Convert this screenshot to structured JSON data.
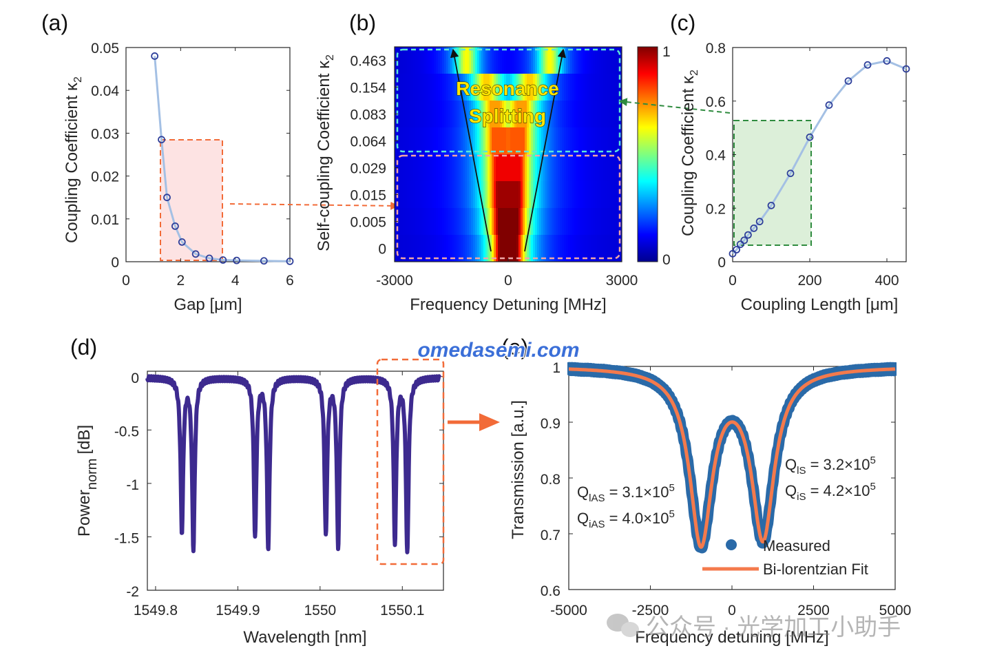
{
  "panels": {
    "a": "(a)",
    "b": "(b)",
    "c": "(c)",
    "d": "(d)",
    "e": "(e)"
  },
  "watermark": {
    "url": "omedasemi.com",
    "wechat": "公众号 · 光学加工小助手"
  },
  "colors": {
    "line_blue": "#a4c0e4",
    "marker_blue": "#2e3f9a",
    "orange": "#f26b38",
    "green": "#2e8b3e",
    "purple": "#3d2a8f",
    "meas_blue": "#2a6aa8",
    "fit_orange": "#f47a4c",
    "cyan_box": "#5ee6d6",
    "pink_box": "#f0a6a6"
  },
  "chart_data": [
    {
      "id": "a",
      "type": "line",
      "xlabel": "Gap [μm]",
      "ylabel": "Coupling Coefficient κ",
      "ylabel_sub": "2",
      "xlim": [
        0,
        6
      ],
      "ylim": [
        0,
        0.05
      ],
      "xticks": [
        "0",
        "2",
        "4",
        "6"
      ],
      "yticks": [
        "0",
        "0.01",
        "0.02",
        "0.03",
        "0.04",
        "0.05"
      ],
      "x": [
        1.05,
        1.3,
        1.5,
        1.8,
        2.05,
        2.55,
        3.05,
        3.55,
        4.05,
        5.05,
        6.0
      ],
      "y": [
        0.048,
        0.0285,
        0.015,
        0.0083,
        0.0046,
        0.0018,
        0.0008,
        0.0004,
        0.0003,
        0.0002,
        0.0001
      ],
      "grid": false
    },
    {
      "id": "b",
      "type": "heatmap",
      "xlabel": "Frequency Detuning [MHz]",
      "ylabel": "Self-coupling Coefficient κ",
      "ylabel_sub": "2",
      "xticks": [
        "-3000",
        "0",
        "3000"
      ],
      "xlim": [
        -3000,
        3000
      ],
      "rows": [
        "0.463",
        "0.154",
        "0.083",
        "0.064",
        "0.029",
        "0.015",
        "0.005",
        "0"
      ],
      "splitting_MHz": [
        2200,
        1150,
        720,
        540,
        330,
        240,
        160,
        70
      ],
      "widths_MHz": [
        300,
        380,
        400,
        420,
        400,
        390,
        360,
        330
      ],
      "peaks": [
        0.55,
        0.6,
        0.65,
        0.72,
        0.82,
        0.9,
        0.97,
        1.0
      ],
      "colorbar": {
        "max": "1",
        "min": "0"
      },
      "annotation": [
        "Resonance",
        "Splitting"
      ]
    },
    {
      "id": "c",
      "type": "line",
      "xlabel": "Coupling Length [μm]",
      "ylabel": "Coupling Coefficient κ",
      "ylabel_sub": "2",
      "xlim": [
        0,
        450
      ],
      "ylim": [
        0,
        0.8
      ],
      "xticks": [
        "0",
        "200",
        "400"
      ],
      "yticks": [
        "0",
        "0.2",
        "0.4",
        "0.6",
        "0.8"
      ],
      "x": [
        0,
        10,
        20,
        30,
        40,
        55,
        70,
        100,
        150,
        200,
        250,
        300,
        350,
        400,
        450
      ],
      "y": [
        0.03,
        0.045,
        0.065,
        0.08,
        0.1,
        0.125,
        0.15,
        0.21,
        0.33,
        0.465,
        0.585,
        0.675,
        0.735,
        0.75,
        0.72
      ],
      "grid": false
    },
    {
      "id": "d",
      "type": "line",
      "xlabel": "Wavelength [nm]",
      "ylabel": "Power",
      "ylabel_sub": "norm",
      "ylabel_unit": "[dB]",
      "xlim": [
        1549.79,
        1550.15
      ],
      "ylim": [
        -2,
        0.05
      ],
      "xticks": [
        "1549.8",
        "1549.9",
        "1550",
        "1550.1"
      ],
      "yticks": [
        "0",
        "-0.5",
        "-1",
        "-1.5",
        "-2"
      ],
      "dips": [
        {
          "x": 1549.832,
          "depth": 1.42,
          "w": 0.0019
        },
        {
          "x": 1549.846,
          "depth": 1.58,
          "w": 0.0019
        },
        {
          "x": 1549.921,
          "depth": 1.47,
          "w": 0.0019
        },
        {
          "x": 1549.937,
          "depth": 1.58,
          "w": 0.0019
        },
        {
          "x": 1550.007,
          "depth": 1.46,
          "w": 0.0019
        },
        {
          "x": 1550.022,
          "depth": 1.56,
          "w": 0.0019
        },
        {
          "x": 1550.091,
          "depth": 1.52,
          "w": 0.0019
        },
        {
          "x": 1550.106,
          "depth": 1.63,
          "w": 0.0019
        }
      ]
    },
    {
      "id": "e",
      "type": "line",
      "xlabel": "Frequency detuning [MHz]",
      "ylabel": "Transmission [a.u.]",
      "xlim": [
        -5000,
        5000
      ],
      "ylim": [
        0.6,
        1.0
      ],
      "xticks": [
        "-5000",
        "-2500",
        "0",
        "2500",
        "5000"
      ],
      "yticks": [
        "0.6",
        "0.7",
        "0.8",
        "0.9",
        "1"
      ],
      "series": [
        {
          "name": "Measured",
          "type": "scatter"
        },
        {
          "name": "Bi-lorentzian Fit",
          "type": "line"
        }
      ],
      "dips": [
        {
          "x": -950,
          "depth": 0.31,
          "hw": 420
        },
        {
          "x": 950,
          "depth": 0.3,
          "hw": 420
        }
      ],
      "q_labels": {
        "q_lAS": {
          "q": "Q",
          "sub": "lAS",
          "val": " = 3.1×10",
          "exp": "5"
        },
        "q_iAS": {
          "q": "Q",
          "sub": "iAS",
          "val": " = 4.0×10",
          "exp": "5"
        },
        "q_lS": {
          "q": "Q",
          "sub": "lS",
          "val": " = 3.2×10",
          "exp": "5"
        },
        "q_iS": {
          "q": "Q",
          "sub": "iS",
          "val": " = 4.2×10",
          "exp": "5"
        }
      }
    }
  ]
}
